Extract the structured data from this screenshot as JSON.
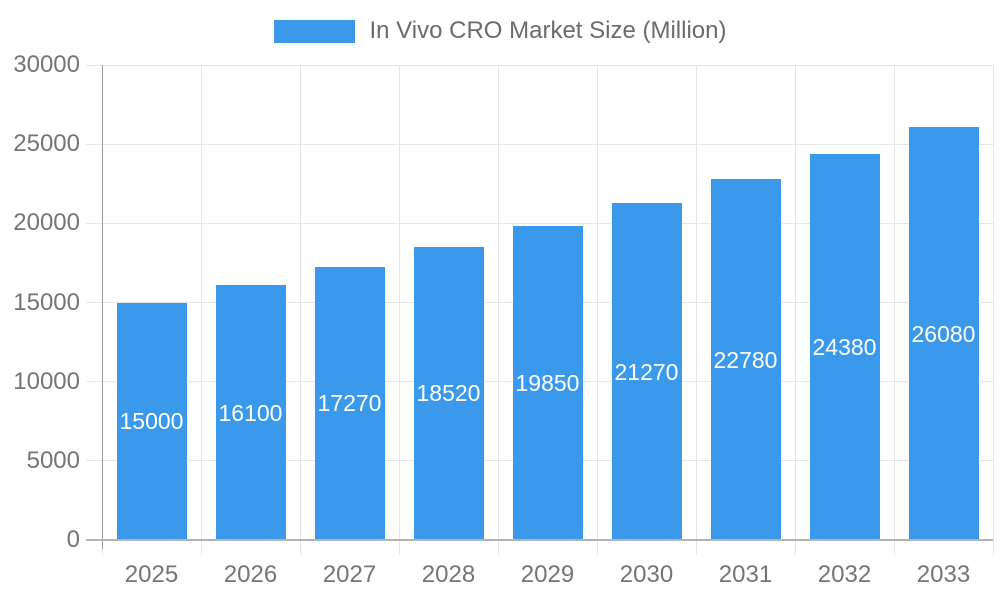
{
  "chart_data": {
    "type": "bar",
    "title": "In Vivo CRO Market Size (Million)",
    "categories": [
      "2025",
      "2026",
      "2027",
      "2028",
      "2029",
      "2030",
      "2031",
      "2032",
      "2033"
    ],
    "values": [
      15000,
      16100,
      17270,
      18520,
      19850,
      21270,
      22780,
      24380,
      26080
    ],
    "xlabel": "",
    "ylabel": "",
    "ylim": [
      0,
      30000
    ],
    "ytick_step": 5000,
    "ytick_labels": [
      "0",
      "5000",
      "10000",
      "15000",
      "20000",
      "25000",
      "30000"
    ],
    "grid": true,
    "legend_position": "top-center",
    "value_labels_shown": true,
    "value_label_position": "inside-center"
  },
  "legend": {
    "label": "In Vivo CRO Market Size (Million)",
    "swatch": "bar-color"
  },
  "colors": {
    "bar": "#3b99ec",
    "value_label_text": "#ffffff",
    "axis_text": "#757575",
    "legend_text": "#6b6b6b",
    "gridline": "#e6e6e6",
    "axis_line": "#9a9a9a",
    "baseline": "#b3b3b3",
    "background": "#ffffff"
  }
}
